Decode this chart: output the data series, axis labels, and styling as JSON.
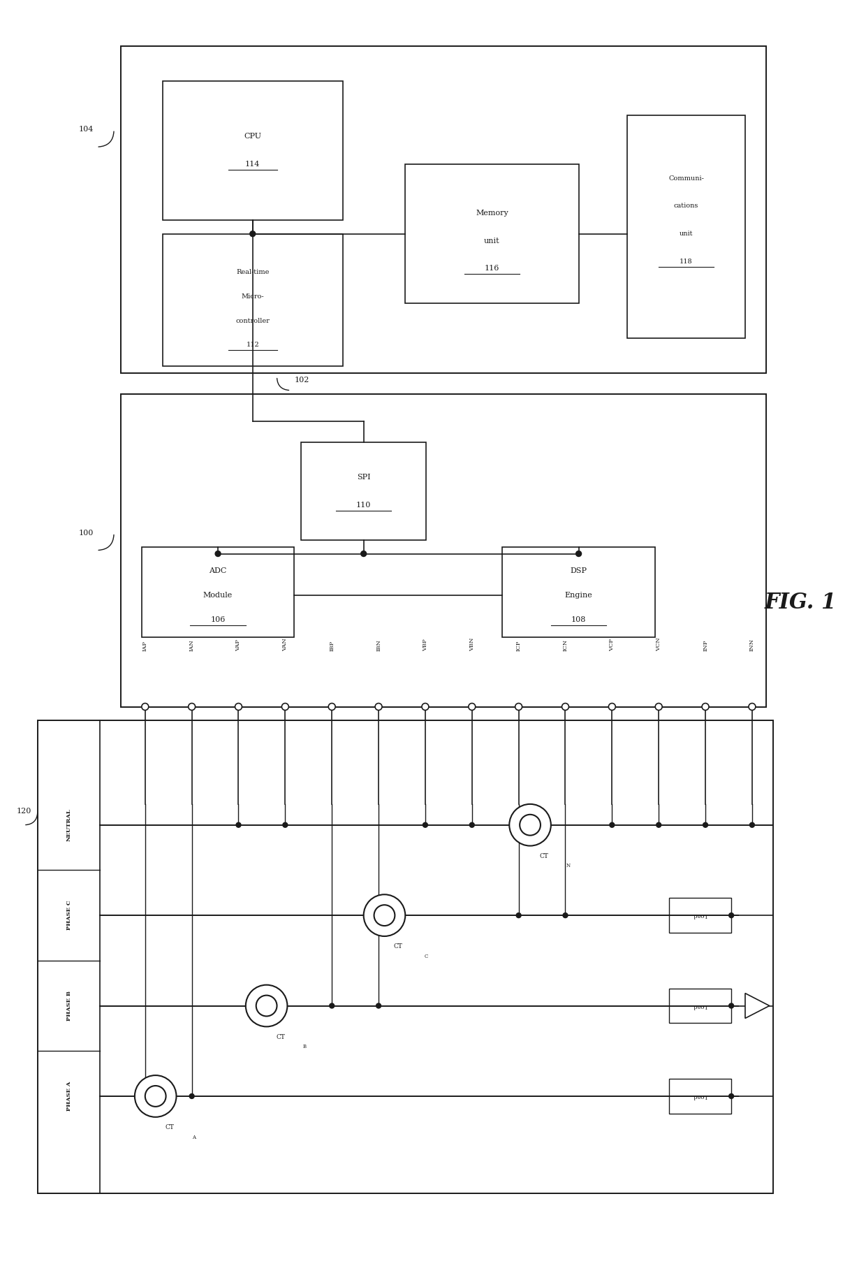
{
  "bg_color": "white",
  "line_color": "#1a1a1a",
  "fig_width": 12.4,
  "fig_height": 18.12,
  "title": "FIG. 1",
  "pin_labels": [
    "IAP",
    "IAN",
    "VAP",
    "VAN",
    "IBP",
    "IBN",
    "VBP",
    "VBN",
    "ICP",
    "ICN",
    "VCP",
    "VCN",
    "INP",
    "INN"
  ],
  "phase_labels": [
    "NEUTRAL",
    "PHASE C",
    "PHASE B",
    "PHASE A"
  ],
  "ct_labels": [
    "CT_A",
    "CT_B",
    "CT_C",
    "CT_N"
  ]
}
